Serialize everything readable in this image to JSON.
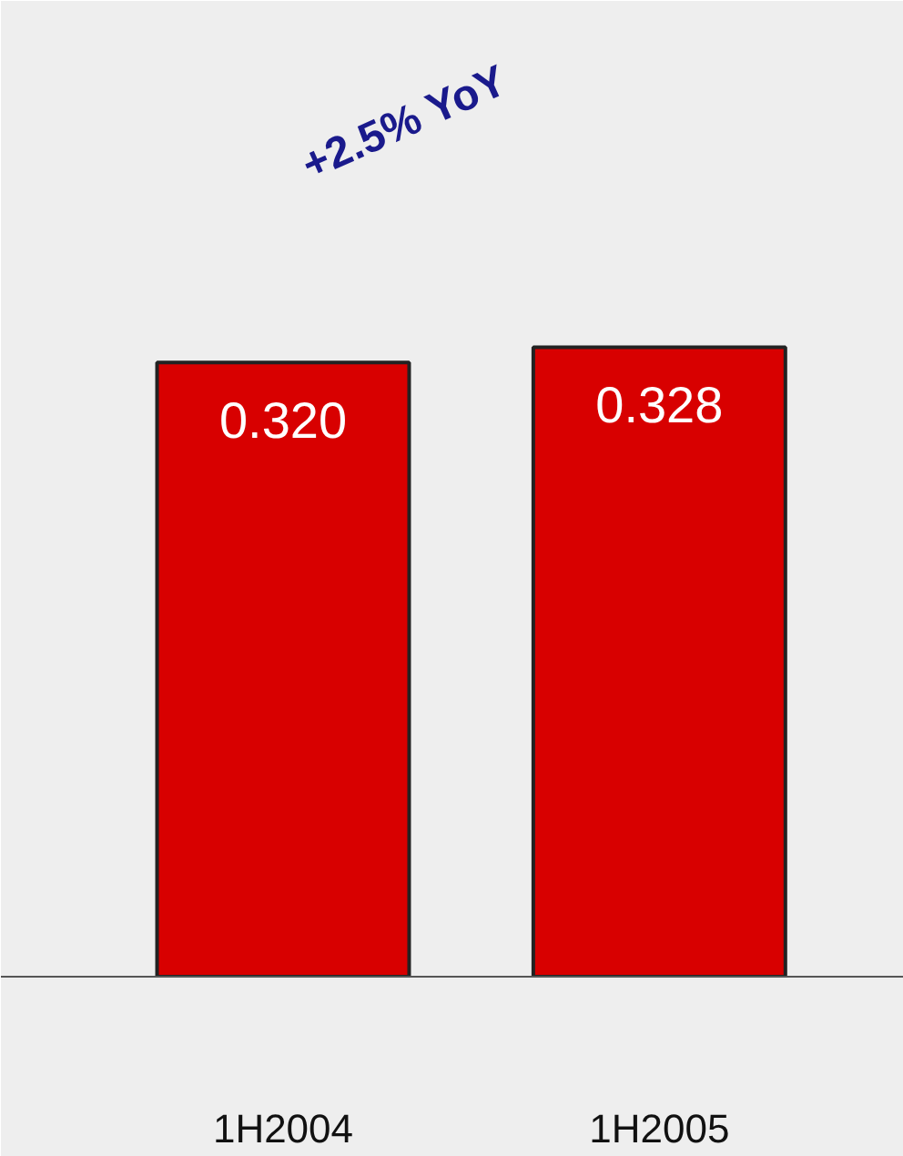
{
  "chart_data": {
    "type": "bar",
    "categories": [
      "1H2004",
      "1H2005"
    ],
    "values": [
      0.32,
      0.328
    ],
    "value_labels": [
      "0.320",
      "0.328"
    ],
    "color": "#d80000",
    "annotations": [
      "+2.5% YoY"
    ],
    "grid": false
  }
}
